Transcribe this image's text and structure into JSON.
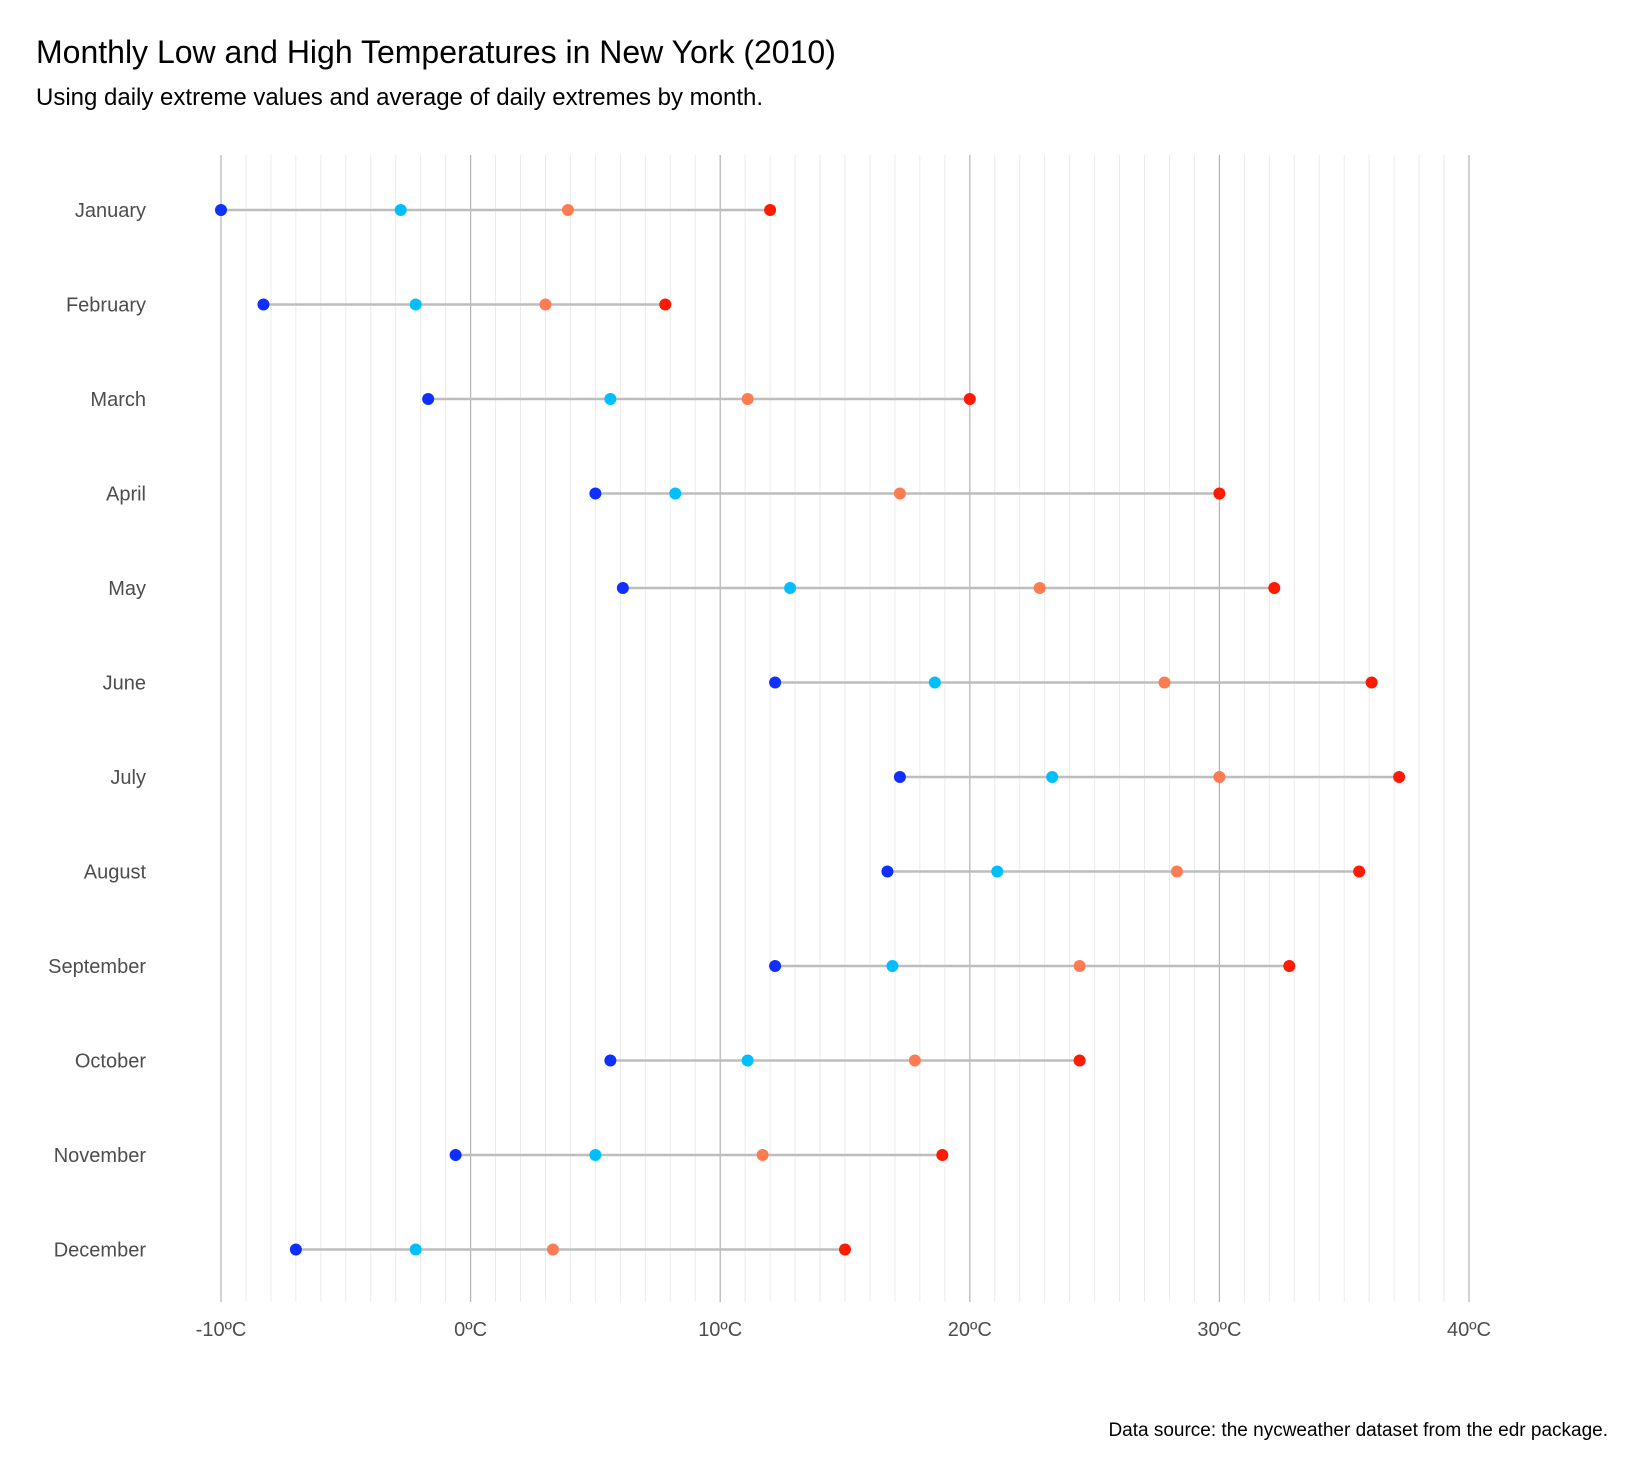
{
  "chart_data": {
    "type": "dumbbell",
    "title": "Monthly Low and High Temperatures in New York (2010)",
    "subtitle": "Using daily extreme values and average of daily extremes by month.",
    "caption": "Data source: the nycweather dataset from the edr package.",
    "xlim": [
      -10,
      40
    ],
    "x_ticks": [
      -10,
      0,
      10,
      20,
      30,
      40
    ],
    "x_tick_labels": [
      "-10ºC",
      "0ºC",
      "10ºC",
      "20ºC",
      "30ºC",
      "40ºC"
    ],
    "grid": true,
    "colors": {
      "min_low": "#0f2fff",
      "avg_low": "#00bfff",
      "avg_high": "#ff7b52",
      "max_high": "#ff1a00",
      "segment": "#bdbdbd"
    },
    "categories": [
      "January",
      "February",
      "March",
      "April",
      "May",
      "June",
      "July",
      "August",
      "September",
      "October",
      "November",
      "December"
    ],
    "series": [
      {
        "values": [
          -10.0,
          -8.3,
          -1.7,
          5.0,
          6.1,
          12.2,
          17.2,
          16.7,
          12.2,
          5.6,
          -0.6,
          -7.0
        ]
      },
      {
        "values": [
          -2.8,
          -2.2,
          5.6,
          8.2,
          12.8,
          18.6,
          23.3,
          21.1,
          16.9,
          11.1,
          5.0,
          -2.2
        ]
      },
      {
        "values": [
          3.9,
          3.0,
          11.1,
          17.2,
          22.8,
          27.8,
          30.0,
          28.3,
          24.4,
          17.8,
          11.7,
          3.3
        ]
      },
      {
        "values": [
          12.0,
          7.8,
          20.0,
          30.0,
          32.2,
          36.1,
          37.2,
          35.6,
          32.8,
          24.4,
          18.9,
          15.0
        ]
      }
    ]
  }
}
